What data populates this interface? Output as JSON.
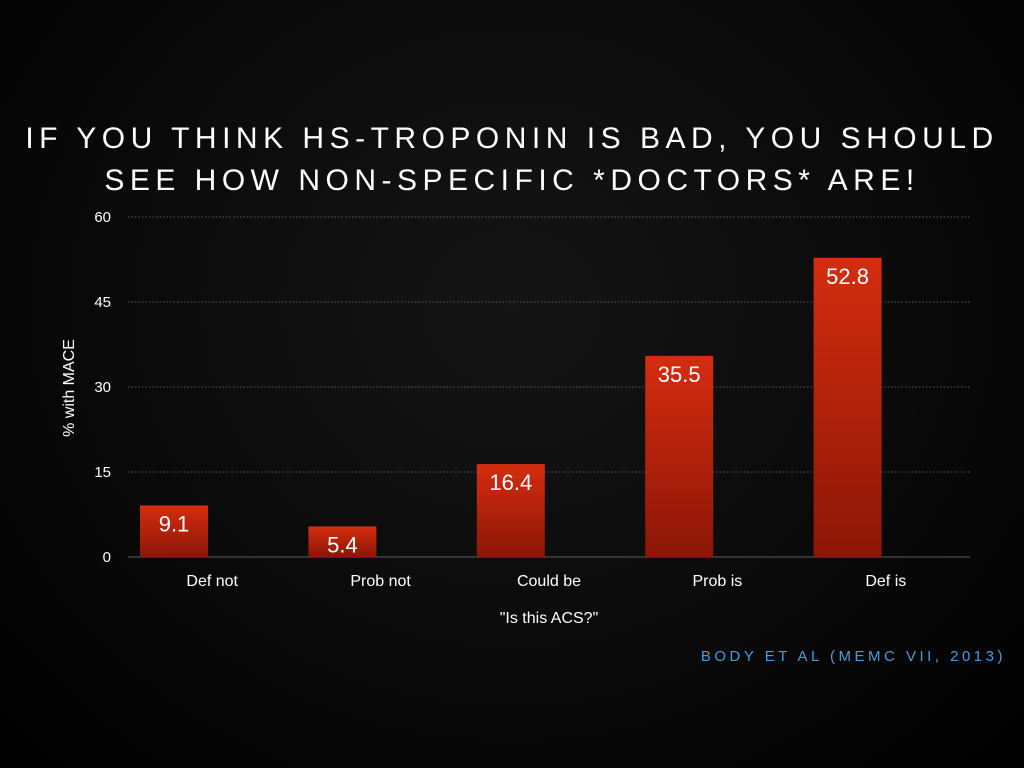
{
  "slide": {
    "title_line1": "IF YOU THINK HS-TROPONIN IS BAD, YOU SHOULD",
    "title_line2": "SEE HOW NON-SPECIFIC *DOCTORS* ARE!",
    "source": "BODY ET AL (MEMC VII, 2013)"
  },
  "colors": {
    "bar_top": "#d42d0f",
    "bar_bottom": "#8c1606",
    "text": "#ffffff",
    "source": "#4a9bd8",
    "grid": "#5a5a5a"
  },
  "chart_data": {
    "type": "bar",
    "categories": [
      "Def not",
      "Prob not",
      "Could be",
      "Prob is",
      "Def is"
    ],
    "values": [
      9.1,
      5.4,
      16.4,
      35.5,
      52.8
    ],
    "value_labels": [
      "9.1",
      "5.4",
      "16.4",
      "35.5",
      "52.8"
    ],
    "xlabel": "\"Is this ACS?\"",
    "ylabel": "% with MACE",
    "ylim": [
      0,
      60
    ],
    "yticks": [
      0,
      15,
      30,
      45,
      60
    ],
    "ytick_labels": [
      "0",
      "15",
      "30",
      "45",
      "60"
    ],
    "grid": true,
    "grid_style": "dotted",
    "legend": false
  }
}
